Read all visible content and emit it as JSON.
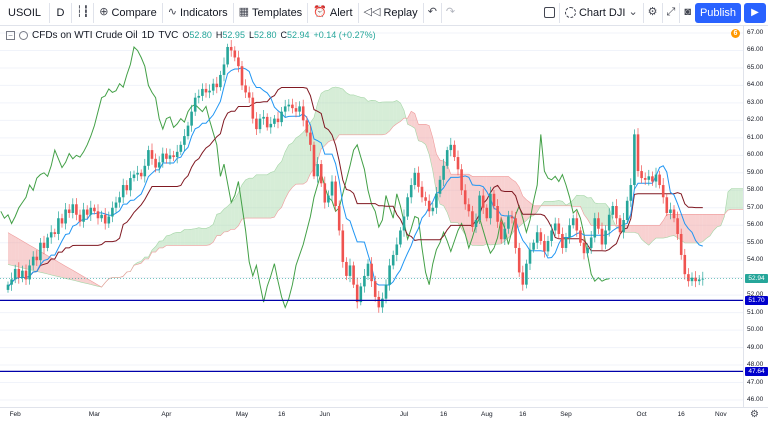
{
  "toolbar": {
    "symbol": "USOIL",
    "interval": "D",
    "compare_label": "Compare",
    "indicators_label": "Indicators",
    "templates_label": "Templates",
    "alert_label": "Alert",
    "replay_label": "Replay",
    "layout_label": "Chart DJI",
    "publish_label": "Publish"
  },
  "legend": {
    "collapse_glyph": "−",
    "title": "CFDs on WTI Crude Oil",
    "interval": "1D",
    "exchange": "TVC",
    "o_label": "O",
    "o_value": "52.80",
    "h_label": "H",
    "h_value": "52.95",
    "l_label": "L",
    "l_value": "52.80",
    "c_label": "C",
    "c_value": "52.94",
    "change": "+0.14 (+0.27%)"
  },
  "info_badge": "6",
  "price_axis": {
    "labels": [
      "67.00",
      "66.00",
      "65.00",
      "64.00",
      "63.00",
      "62.00",
      "61.00",
      "60.00",
      "59.00",
      "58.00",
      "57.00",
      "56.00",
      "55.00",
      "54.00",
      "53.00",
      "52.00",
      "51.00",
      "50.00",
      "49.00",
      "48.00",
      "47.00",
      "46.00"
    ],
    "tags": [
      {
        "text": "52.94",
        "color": "#26a69a"
      },
      {
        "text": "51.70",
        "color": "#0000cc"
      },
      {
        "text": "47.64",
        "color": "#0000cc"
      }
    ]
  },
  "time_axis": {
    "labels": [
      "Feb",
      "Mar",
      "Apr",
      "May",
      "16",
      "Jun",
      "Jul",
      "16",
      "Aug",
      "16",
      "Sep",
      "Oct",
      "16",
      "Nov"
    ]
  },
  "colors": {
    "up": "#26a69a",
    "down": "#ef5350",
    "conversion_line": "#2196f3",
    "base_line": "#801922",
    "lagging_span": "#43a047",
    "cloud_bull": "#a5d6a7",
    "cloud_bear": "#ef9a9a",
    "hline": "#0000aa"
  },
  "chart_data": {
    "type": "candlestick",
    "title": "CFDs on WTI Crude Oil",
    "ylim": [
      45.6,
      67.4
    ],
    "horizontal_lines": [
      51.7,
      47.64
    ],
    "last_price": 52.94,
    "closes": [
      52.6,
      52.9,
      53.5,
      53.0,
      53.4,
      52.9,
      53.7,
      54.2,
      54.0,
      55.0,
      54.7,
      55.3,
      55.6,
      55.5,
      56.4,
      56.1,
      56.9,
      56.7,
      57.2,
      56.6,
      56.2,
      56.9,
      56.6,
      57.0,
      56.8,
      56.4,
      56.6,
      56.1,
      56.5,
      57.0,
      57.3,
      57.6,
      58.3,
      58.0,
      58.7,
      58.9,
      59.0,
      58.8,
      59.4,
      60.3,
      59.8,
      59.3,
      59.6,
      60.1,
      59.8,
      60.0,
      59.9,
      60.2,
      60.6,
      61.1,
      61.7,
      62.5,
      63.3,
      63.4,
      63.8,
      63.6,
      63.7,
      64.1,
      63.9,
      64.6,
      65.2,
      66.2,
      66.0,
      65.6,
      65.1,
      64.0,
      63.6,
      63.3,
      62.1,
      61.5,
      62.1,
      62.2,
      61.6,
      61.8,
      62.1,
      61.9,
      62.5,
      62.8,
      62.9,
      62.7,
      62.5,
      62.8,
      62.0,
      61.3,
      60.6,
      58.8,
      59.5,
      58.4,
      57.3,
      57.7,
      58.5,
      57.1,
      55.7,
      53.9,
      53.1,
      53.7,
      52.6,
      51.6,
      52.5,
      53.1,
      53.8,
      52.8,
      51.9,
      51.3,
      51.8,
      52.6,
      53.7,
      54.3,
      54.9,
      55.7,
      56.5,
      57.6,
      58.3,
      59.0,
      58.2,
      57.6,
      57.4,
      56.8,
      57.0,
      57.8,
      58.6,
      59.4,
      60.3,
      60.6,
      59.9,
      59.2,
      58.0,
      57.2,
      56.8,
      55.9,
      56.3,
      57.7,
      57.0,
      56.4,
      57.8,
      57.1,
      56.2,
      55.2,
      55.8,
      56.5,
      56.4,
      54.7,
      53.3,
      52.6,
      53.8,
      54.6,
      55.0,
      55.6,
      55.1,
      54.5,
      55.1,
      55.7,
      56.1,
      55.5,
      54.7,
      55.3,
      56.0,
      56.4,
      55.7,
      55.0,
      54.4,
      54.7,
      55.3,
      56.4,
      55.8,
      54.9,
      55.7,
      56.6,
      57.1,
      56.4,
      55.6,
      56.3,
      57.4,
      58.3,
      61.2,
      59.1,
      58.7,
      58.6,
      58.8,
      58.5,
      58.9,
      58.3,
      57.6,
      56.7,
      56.9,
      56.4,
      55.5,
      54.3,
      53.2,
      52.8,
      53.0,
      52.8,
      52.9,
      52.94
    ]
  }
}
